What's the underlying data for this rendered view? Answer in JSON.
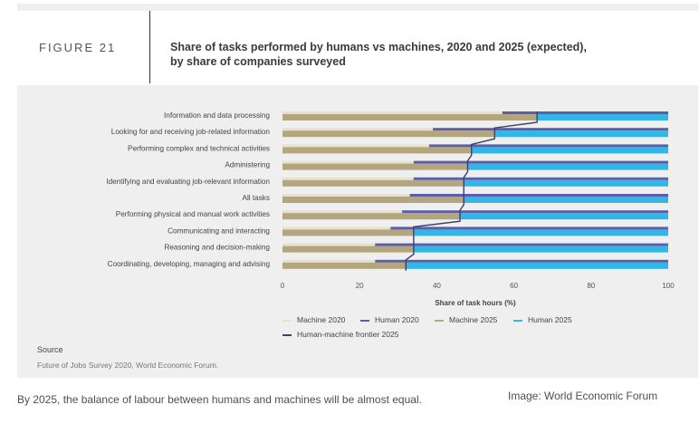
{
  "figure": {
    "label": "FIGURE 21",
    "title_line1": "Share of tasks performed by humans vs machines, 2020 and 2025 (expected),",
    "title_line2": "by share of companies surveyed"
  },
  "source": {
    "label": "Source",
    "text": "Future of Jobs Survey 2020, World Economic Forum."
  },
  "caption": "By 2025, the balance of labour between humans and machines will be almost equal.",
  "credit": "Image: World Economic Forum",
  "legend": {
    "machine_2020": "Machine 2020",
    "human_2020": "Human 2020",
    "machine_2025": "Machine 2025",
    "human_2025": "Human 2025",
    "frontier": "Human-machine frontier 2025"
  },
  "colors": {
    "machine_2020": "#e7e2cf",
    "human_2020": "#5b5ea8",
    "machine_2025": "#b3a67e",
    "human_2025": "#31b6e7",
    "frontier": "#3a3f6b"
  },
  "chart_data": {
    "type": "bar",
    "orientation": "horizontal",
    "xlabel": "Share of task hours (%)",
    "xlim": [
      0,
      100
    ],
    "xticks": [
      0,
      20,
      40,
      60,
      80,
      100
    ],
    "categories": [
      "Information and data processing",
      "Looking for and receiving job-related information",
      "Performing complex and technical activities",
      "Administering",
      "Identifying and evaluating job-relevant information",
      "All tasks",
      "Performing physical and manual work activities",
      "Communicating and interacting",
      "Reasoning and decision-making",
      "Coordinating, developing, managing and advising"
    ],
    "series": [
      {
        "name": "Machine 2020",
        "values": [
          57,
          39,
          38,
          34,
          34,
          33,
          31,
          28,
          24,
          24
        ]
      },
      {
        "name": "Human 2020",
        "values": [
          43,
          61,
          62,
          66,
          66,
          67,
          69,
          72,
          76,
          76
        ]
      },
      {
        "name": "Machine 2025",
        "values": [
          66,
          55,
          49,
          48,
          47,
          47,
          46,
          34,
          34,
          32
        ]
      },
      {
        "name": "Human 2025",
        "values": [
          34,
          45,
          51,
          52,
          53,
          53,
          54,
          66,
          66,
          68
        ]
      },
      {
        "name": "Human-machine frontier 2025",
        "values": [
          66,
          55,
          49,
          48,
          47,
          47,
          46,
          34,
          34,
          32
        ]
      }
    ],
    "legend_position": "bottom"
  }
}
